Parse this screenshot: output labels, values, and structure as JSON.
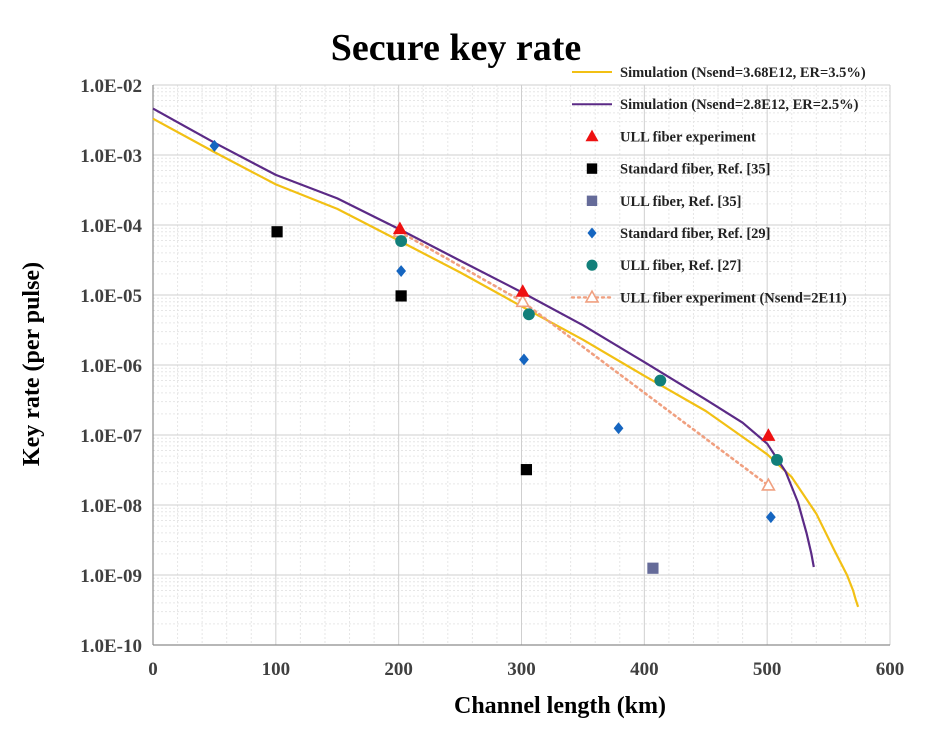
{
  "chart_data": {
    "type": "scatter",
    "title": "Secure key rate",
    "xlabel": "Channel length (km)",
    "ylabel": "Key rate (per pulse)",
    "xlim": [
      0,
      600
    ],
    "ylim": [
      1e-10,
      0.01
    ],
    "yscale": "log",
    "x_ticks": [
      0,
      100,
      200,
      300,
      400,
      500,
      600
    ],
    "x_tick_labels": [
      "0",
      "100",
      "200",
      "300",
      "400",
      "500",
      "600"
    ],
    "y_ticks": [
      0.01,
      0.001,
      0.0001,
      1e-05,
      1e-06,
      1e-07,
      1e-08,
      1e-09,
      1e-10
    ],
    "y_tick_labels": [
      "1.0E-02",
      "1.0E-03",
      "1.0E-04",
      "1.0E-05",
      "1.0E-06",
      "1.0E-07",
      "1.0E-08",
      "1.0E-09",
      "1.0E-10"
    ],
    "grid": true,
    "legend_position": "top-right",
    "series": [
      {
        "name": "Simulation (Nsend=3.68E12, ER=3.5%)",
        "kind": "line",
        "color": "#f2c014",
        "x": [
          0,
          50,
          100,
          150,
          200,
          250,
          300,
          350,
          400,
          450,
          500,
          520,
          540,
          555,
          565,
          570,
          572,
          574
        ],
        "y": [
          0.0033,
          0.0011,
          0.00038,
          0.00017,
          6e-05,
          2.1e-05,
          6.9e-06,
          2.3e-06,
          7e-07,
          2.2e-07,
          5.3e-08,
          2.5e-08,
          7.5e-09,
          2.2e-09,
          1e-09,
          6e-10,
          4.5e-10,
          3.5e-10
        ]
      },
      {
        "name": "Simulation (Nsend=2.8E12, ER=2.5%)",
        "kind": "line",
        "color": "#5b2a86",
        "x": [
          0,
          50,
          100,
          150,
          200,
          250,
          300,
          350,
          400,
          450,
          480,
          500,
          515,
          525,
          532,
          536,
          538
        ],
        "y": [
          0.0046,
          0.0015,
          0.00052,
          0.00024,
          8.8e-05,
          3.1e-05,
          1.1e-05,
          3.7e-06,
          1.1e-06,
          3.2e-07,
          1.5e-07,
          7.5e-08,
          3e-08,
          1.1e-08,
          4e-09,
          2e-09,
          1.3e-09
        ]
      },
      {
        "name": "ULL fiber experiment",
        "kind": "marker",
        "marker": "triangle",
        "color": "#ee1111",
        "x": [
          201,
          301,
          501
        ],
        "y": [
          8.8e-05,
          1.12e-05,
          9.8e-08
        ]
      },
      {
        "name": "Standard fiber, Ref. [35]",
        "kind": "marker",
        "marker": "square",
        "color": "#000000",
        "x": [
          101,
          202,
          304
        ],
        "y": [
          8e-05,
          9.7e-06,
          3.2e-08
        ]
      },
      {
        "name": "ULL fiber,  Ref. [35]",
        "kind": "marker",
        "marker": "square",
        "color": "#656b99",
        "x": [
          407
        ],
        "y": [
          1.25e-09
        ]
      },
      {
        "name": "Standard fiber,  Ref. [29]",
        "kind": "marker",
        "marker": "diamond",
        "color": "#1565c0",
        "x": [
          50,
          202,
          302,
          379,
          503
        ],
        "y": [
          0.00135,
          2.2e-05,
          1.2e-06,
          1.25e-07,
          6.7e-09
        ]
      },
      {
        "name": "ULL fiber,  Ref. [27]",
        "kind": "marker",
        "marker": "circle",
        "color": "#127f7a",
        "x": [
          202,
          306,
          413,
          508
        ],
        "y": [
          5.9e-05,
          5.3e-06,
          6e-07,
          4.4e-08
        ]
      },
      {
        "name": "ULL fiber experiment (Nsend=2E11)",
        "kind": "dotted-line-marker",
        "marker": "triangle-open",
        "color": "#f0a080",
        "x": [
          201,
          301,
          501
        ],
        "y": [
          8e-05,
          8e-06,
          1.9e-08
        ]
      }
    ]
  }
}
